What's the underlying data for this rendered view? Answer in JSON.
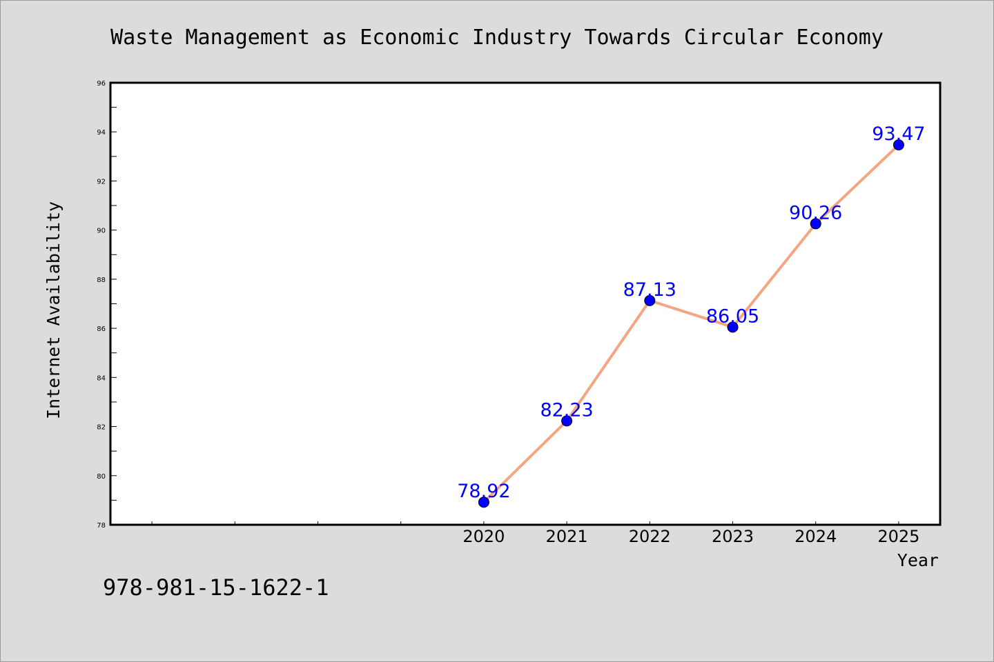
{
  "chart_data": {
    "type": "line",
    "title": "Waste Management as Economic Industry Towards Circular Economy",
    "xlabel": "Year",
    "ylabel": "Internet Availability",
    "categories": [
      "2020",
      "2021",
      "2022",
      "2023",
      "2024",
      "2025"
    ],
    "values": [
      78.92,
      82.23,
      87.13,
      86.05,
      90.26,
      93.47
    ],
    "data_labels": [
      "78.92",
      "82.23",
      "87.13",
      "86.05",
      "90.26",
      "93.47"
    ],
    "ylim": [
      78,
      96
    ],
    "yticks": [
      78,
      80,
      82,
      84,
      86,
      88,
      90,
      92,
      94,
      96
    ],
    "ytick_labels": [
      "78",
      "80",
      "82",
      "84",
      "86",
      "88",
      "90",
      "92",
      "94",
      "96"
    ],
    "grid": false,
    "line_color": "#f4a582",
    "marker_color": "#0000ff",
    "label_color": "#0000ff"
  },
  "footer": {
    "code": "978-981-15-1622-1"
  }
}
